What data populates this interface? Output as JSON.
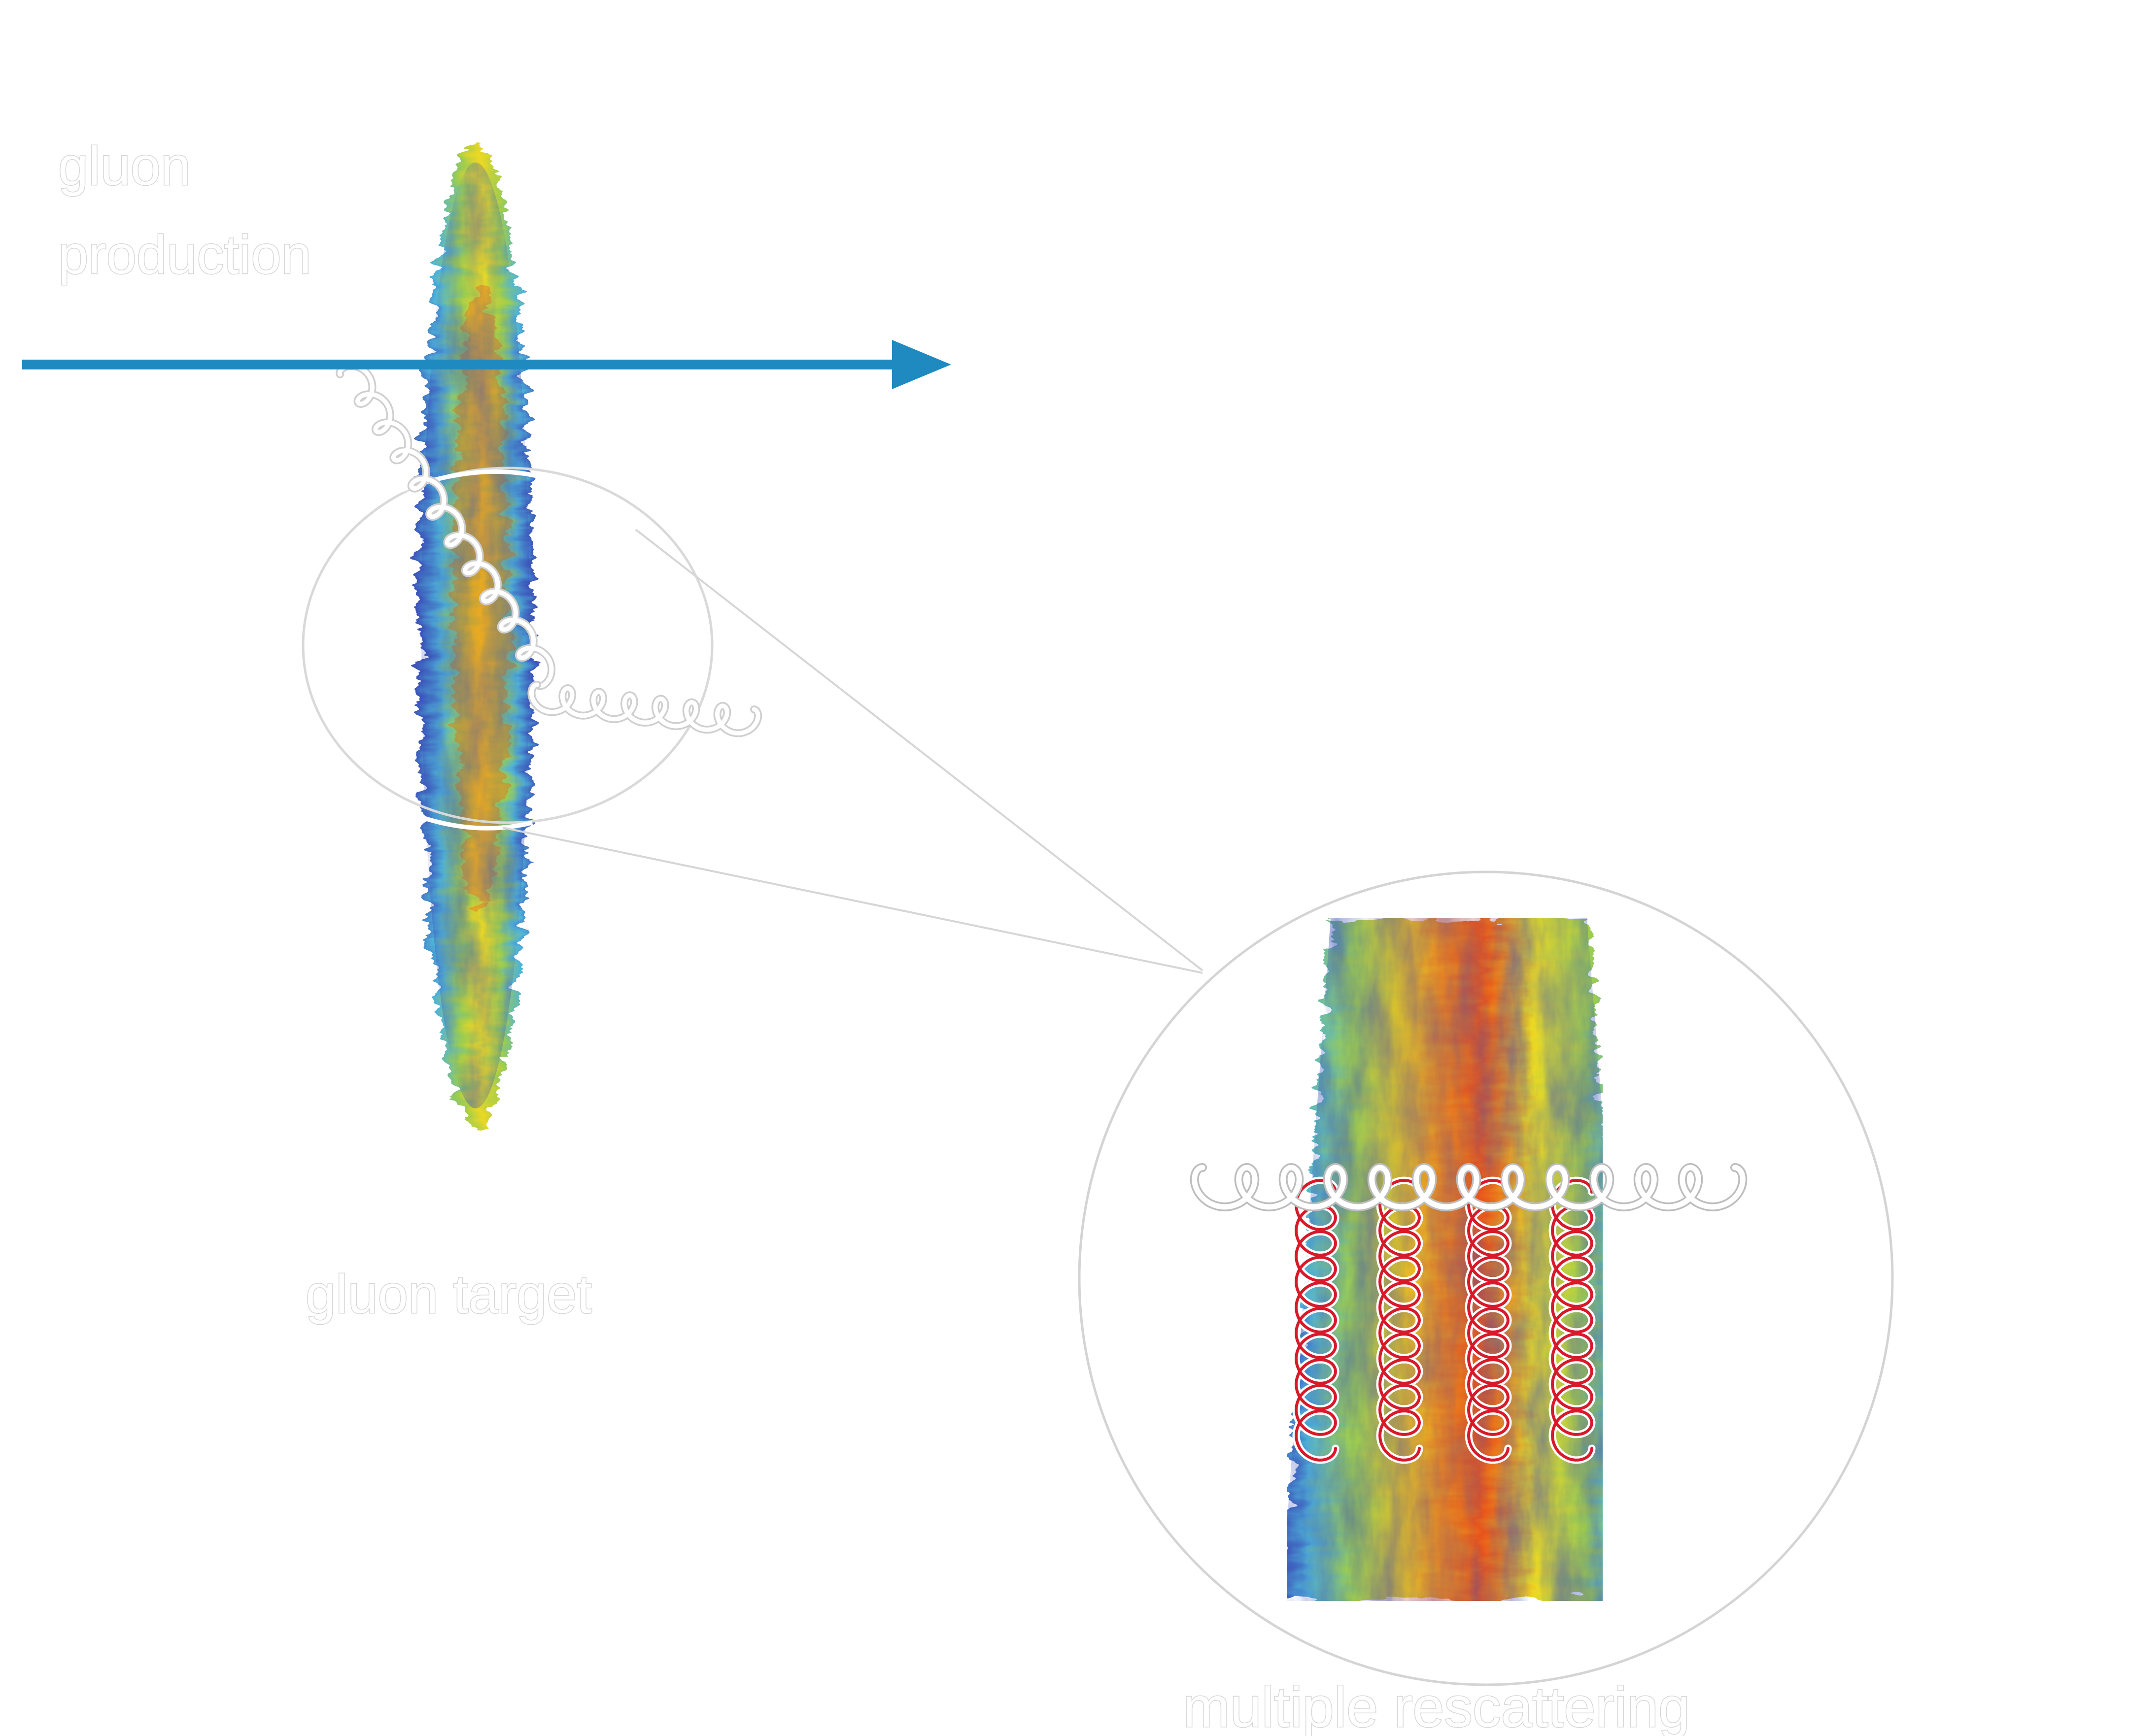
{
  "labels": {
    "production_line1": "gluon",
    "production_line2": "production",
    "target": "gluon target",
    "rescattering": "multiple rescattering"
  },
  "colors": {
    "beam_arrow": "#1f8ac0",
    "gluon_spring": "#ffffff",
    "exchanged_gluon": "#d8192a",
    "outline": "#cfcfcf",
    "density_low": "#3b4fb8",
    "density_mid_low": "#4fb3d9",
    "density_mid": "#9ccc50",
    "density_mid_high": "#ecd824",
    "density_high": "#e8541c"
  },
  "icons": {
    "beam": "arrow-right-icon",
    "emitted_gluon": "gluon-spring-icon",
    "exchanged_gluons": "gluon-spring-icon"
  }
}
